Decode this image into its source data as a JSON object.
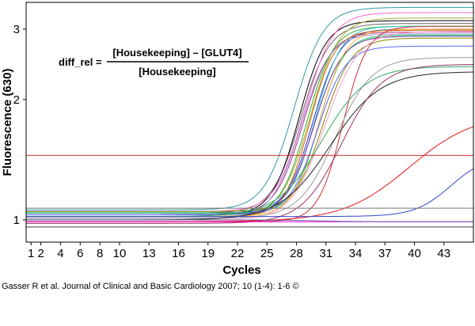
{
  "caption": "Gasser R et al. Journal of Clinical and Basic Cardiology 2007; 10 (1-4): 1-6 ©",
  "formula": {
    "lhs": "diff_rel =",
    "numerator": "[Housekeeping] – [GLUT4]",
    "denominator": "[Housekeeping]"
  },
  "chart_data": {
    "type": "line",
    "title": "",
    "xlabel": "Cycles",
    "ylabel": "Fluorescence (630)",
    "xlim": [
      0.5,
      46
    ],
    "ylim": [
      0.88,
      3.5
    ],
    "y_scale": "log",
    "x_ticks": [
      1,
      2,
      4,
      6,
      8,
      10,
      13,
      16,
      19,
      22,
      25,
      28,
      31,
      34,
      37,
      40,
      43
    ],
    "y_ticks": [
      1,
      2,
      3
    ],
    "grid": false,
    "threshold": 1.45,
    "threshold_color": "#cc3333",
    "series": [
      {
        "color": "#3399aa",
        "baseline": 1.06,
        "plateau": 3.4,
        "midpoint": 28.6,
        "slope": 0.68
      },
      {
        "color": "#666666",
        "baseline": 1.04,
        "plateau": 3.1,
        "midpoint": 29.2,
        "slope": 0.7
      },
      {
        "color": "#000000",
        "baseline": 1.03,
        "plateau": 3.15,
        "midpoint": 29.0,
        "slope": 0.75
      },
      {
        "color": "#ff66cc",
        "baseline": 1.05,
        "plateau": 3.3,
        "midpoint": 29.6,
        "slope": 0.7
      },
      {
        "color": "#aaaa33",
        "baseline": 1.03,
        "plateau": 3.2,
        "midpoint": 30.2,
        "slope": 0.72
      },
      {
        "color": "#33aa33",
        "baseline": 1.02,
        "plateau": 3.05,
        "midpoint": 29.8,
        "slope": 0.75
      },
      {
        "color": "#3333cc",
        "baseline": 1.04,
        "plateau": 3.0,
        "midpoint": 30.4,
        "slope": 0.75
      },
      {
        "color": "#aa3388",
        "baseline": 1.03,
        "plateau": 2.95,
        "midpoint": 29.4,
        "slope": 0.72
      },
      {
        "color": "#33cccc",
        "baseline": 1.05,
        "plateau": 3.05,
        "midpoint": 30.6,
        "slope": 0.78
      },
      {
        "color": "#cc6600",
        "baseline": 1.02,
        "plateau": 2.98,
        "midpoint": 30.0,
        "slope": 0.8
      },
      {
        "color": "#9999cc",
        "baseline": 1.01,
        "plateau": 2.92,
        "midpoint": 29.2,
        "slope": 0.7
      },
      {
        "color": "#00cc66",
        "baseline": 1.04,
        "plateau": 2.9,
        "midpoint": 30.9,
        "slope": 0.8
      },
      {
        "color": "#663399",
        "baseline": 1.03,
        "plateau": 2.88,
        "midpoint": 30.5,
        "slope": 0.72
      },
      {
        "color": "#ffaa33",
        "baseline": 1.02,
        "plateau": 3.0,
        "midpoint": 31.0,
        "slope": 0.75
      },
      {
        "color": "#888800",
        "baseline": 1.05,
        "plateau": 2.85,
        "midpoint": 31.4,
        "slope": 0.7
      },
      {
        "color": "#5566ff",
        "baseline": 1.03,
        "plateau": 2.72,
        "midpoint": 30.8,
        "slope": 0.72
      },
      {
        "color": "#cc3333",
        "baseline": 0.99,
        "plateau": 3.05,
        "midpoint": 33.4,
        "slope": 0.82
      },
      {
        "color": "#ff99cc",
        "baseline": 1.0,
        "plateau": 2.96,
        "midpoint": 31.8,
        "slope": 0.6
      },
      {
        "color": "#999999",
        "baseline": 1.01,
        "plateau": 2.55,
        "midpoint": 32.8,
        "slope": 0.55
      },
      {
        "color": "#222222",
        "baseline": 1.0,
        "plateau": 2.35,
        "midpoint": 32.5,
        "slope": 0.4
      },
      {
        "color": "#33aa66",
        "baseline": 1.02,
        "plateau": 2.42,
        "midpoint": 31.5,
        "slope": 0.45
      },
      {
        "color": "#993366",
        "baseline": 0.98,
        "plateau": 2.45,
        "midpoint": 33.5,
        "slope": 0.5
      },
      {
        "color": "#ee1111",
        "baseline": 0.99,
        "plateau": 1.85,
        "midpoint": 40.5,
        "slope": 0.3
      },
      {
        "color": "#3344cc",
        "baseline": 1.02,
        "plateau": 1.45,
        "midpoint": 44.0,
        "slope": 0.55
      },
      {
        "color": "#ff00cc",
        "baseline": 0.99,
        "plateau": 0.99,
        "midpoint": 30.0,
        "slope": 0.5
      },
      {
        "color": "#6666aa",
        "baseline": 1.0,
        "plateau": 0.99,
        "midpoint": 30.0,
        "slope": 0.5
      },
      {
        "color": "#777777",
        "baseline": 1.07,
        "plateau": 1.07,
        "midpoint": 30.0,
        "slope": 0.5
      },
      {
        "color": "#444444",
        "baseline": 0.96,
        "plateau": 0.96,
        "midpoint": 30.0,
        "slope": 0.5
      }
    ]
  }
}
